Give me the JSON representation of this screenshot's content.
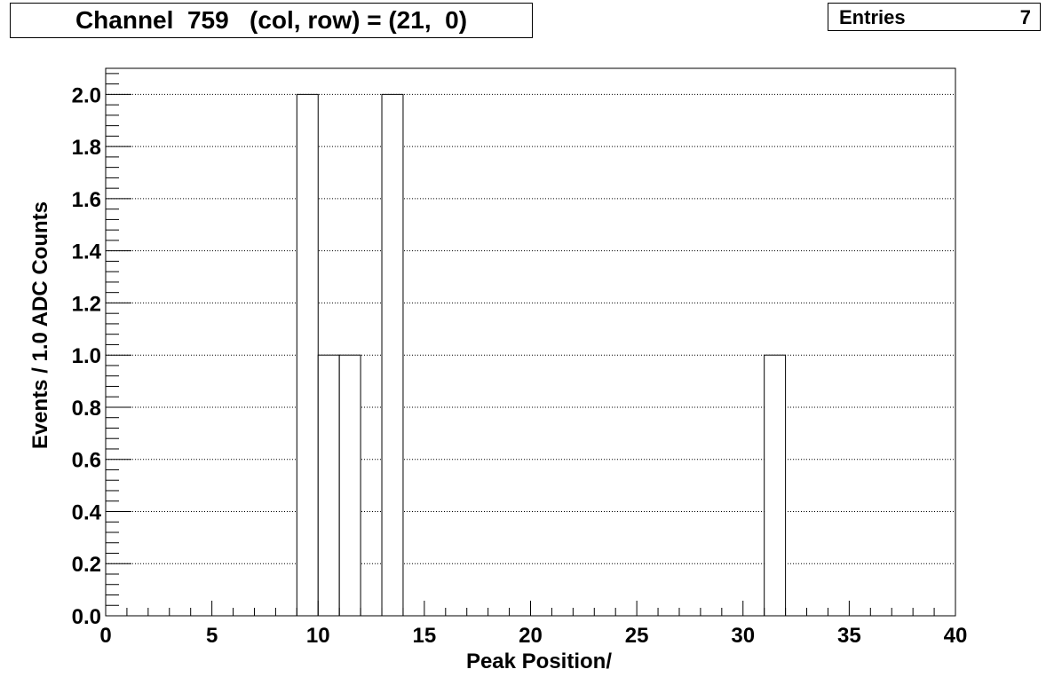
{
  "title": "Channel  759   (col, row) = (21,  0)",
  "stats": {
    "label": "Entries",
    "value": "7"
  },
  "chart_data": {
    "type": "bar",
    "bin_edges": [
      9,
      10,
      12,
      13,
      14,
      31,
      32
    ],
    "bins": [
      {
        "x0": 9,
        "x1": 10,
        "y": 2
      },
      {
        "x0": 10,
        "x1": 11,
        "y": 1
      },
      {
        "x0": 11,
        "x1": 12,
        "y": 1
      },
      {
        "x0": 13,
        "x1": 14,
        "y": 2
      },
      {
        "x0": 31,
        "x1": 32,
        "y": 1
      }
    ],
    "xlabel": "Peak Position/",
    "ylabel": "Events / 1.0 ADC Counts",
    "xlim": [
      0,
      40
    ],
    "ylim": [
      0,
      2.1
    ],
    "xticks": [
      "0",
      "5",
      "10",
      "15",
      "20",
      "25",
      "30",
      "35",
      "40"
    ],
    "yticks": [
      "0.0",
      "0.2",
      "0.4",
      "0.6",
      "0.8",
      "1.0",
      "1.2",
      "1.4",
      "1.6",
      "1.8",
      "2.0"
    ],
    "grid": "horizontal dotted"
  }
}
